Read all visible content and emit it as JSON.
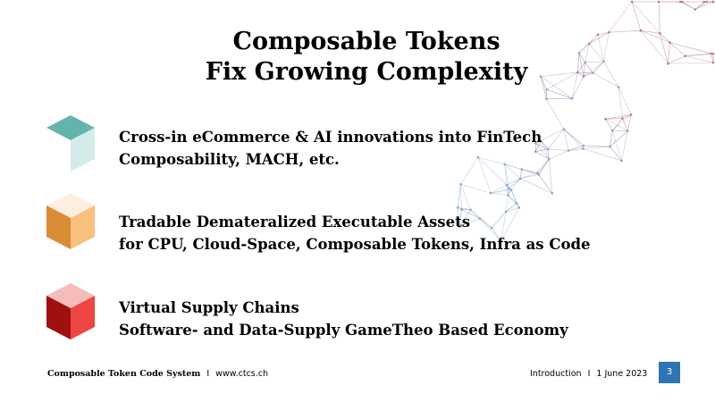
{
  "slide": {
    "title_line1": "Composable Tokens",
    "title_line2": "Fix Growing Complexity"
  },
  "bullets": [
    {
      "icon": "teal-cube-icon",
      "color": "#64b3ad",
      "line1": "Cross-in eCommerce & AI innovations into FinTech",
      "line2": "Composability, MACH, etc."
    },
    {
      "icon": "orange-cube-icon",
      "color": "#d98c35",
      "line1": "Tradable Demateralized Executable Assets",
      "line2": "for CPU, Cloud-Space, Composable Tokens, Infra as Code"
    },
    {
      "icon": "red-cube-icon",
      "color": "#c0161a",
      "line1": "Virtual Supply Chains",
      "line2": "Software- and Data-Supply GameTheo Based Economy"
    }
  ],
  "footer": {
    "brand": "Composable Token Code System",
    "separator": "I",
    "website": "www.ctcs.ch",
    "section": "Introduction",
    "separator2": "I",
    "date": "1 June 2023",
    "page_number": "3",
    "page_box_color": "#2e75b6"
  }
}
